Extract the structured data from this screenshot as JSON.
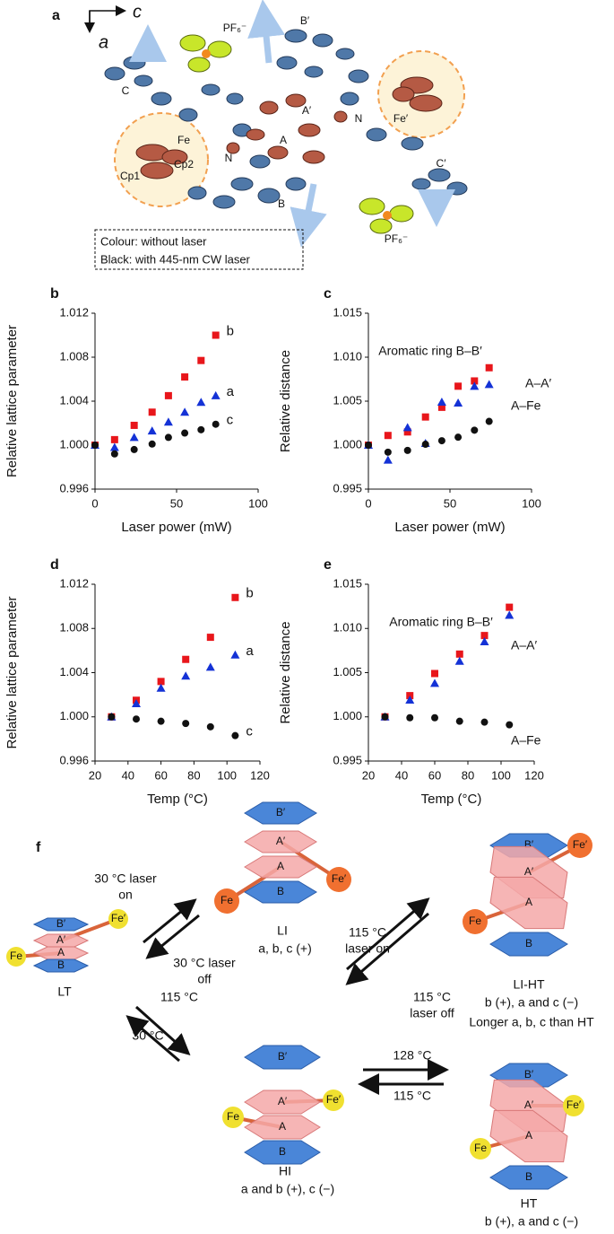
{
  "panel_a": {
    "panel": "a",
    "axes": [
      "c",
      "a"
    ],
    "atoms": [
      "PF₆⁻",
      "B′",
      "C",
      "A′",
      "N",
      "Fe′",
      "Fe",
      "N",
      "A",
      "Cp1",
      "Cp2",
      "B",
      "C′",
      "PF₆⁻"
    ],
    "legend": [
      "Colour: without laser",
      "Black: with 445-nm CW laser"
    ]
  },
  "chart_data": [
    {
      "type": "scatter",
      "panel": "b",
      "ylabel": "Relative lattice parameter",
      "xlabel": "Laser power (mW)",
      "x": [
        0,
        12,
        24,
        35,
        45,
        55,
        65,
        74
      ],
      "xlim": [
        0,
        100
      ],
      "xticks": [
        0,
        50,
        100
      ],
      "ylim": [
        0.996,
        1.012
      ],
      "yticks": [
        0.996,
        {
          "value": 1,
          "label": "1.000"
        },
        1.004,
        1.008,
        1.012
      ],
      "series": [
        {
          "name": "b",
          "color": "#e8161b",
          "marker": "square",
          "values": [
            1.0,
            1.0005,
            1.0018,
            1.003,
            1.0045,
            1.0062,
            1.0077,
            1.01
          ]
        },
        {
          "name": "a",
          "color": "#1432d6",
          "marker": "triangle",
          "values": [
            1.0,
            0.9998,
            1.0007,
            1.0013,
            1.0021,
            1.003,
            1.0039,
            1.0045
          ]
        },
        {
          "name": "c",
          "color": "#111111",
          "marker": "circle",
          "values": [
            1.0,
            0.9992,
            0.9996,
            1.0001,
            1.0007,
            1.0011,
            1.0014,
            1.0019
          ]
        }
      ]
    },
    {
      "type": "scatter",
      "panel": "c",
      "ylabel": "Relative distance",
      "xlabel": "Laser power (mW)",
      "x": [
        0,
        12,
        24,
        35,
        45,
        55,
        65,
        74
      ],
      "xlim": [
        0,
        100
      ],
      "xticks": [
        0,
        50,
        100
      ],
      "ylim": [
        0.995,
        1.015
      ],
      "yticks": [
        0.995,
        {
          "value": 1,
          "label": "1.000"
        },
        1.005,
        {
          "value": 1.01,
          "label": "1.010"
        },
        1.015
      ],
      "series": [
        {
          "name": "Aromatic ring B–B′",
          "color": "#e8161b",
          "marker": "square",
          "values": [
            1.0,
            1.0011,
            1.0015,
            1.0032,
            1.0043,
            1.0067,
            1.0073,
            1.0088
          ]
        },
        {
          "name": "A–A′",
          "color": "#1432d6",
          "marker": "triangle",
          "values": [
            1.0,
            0.9983,
            1.002,
            1.0002,
            1.0049,
            1.0048,
            1.0067,
            1.0069
          ]
        },
        {
          "name": "A–Fe",
          "color": "#111111",
          "marker": "circle",
          "values": [
            1.0,
            0.9992,
            0.9994,
            1.0001,
            1.0005,
            1.0009,
            1.0017,
            1.0027
          ]
        }
      ]
    },
    {
      "type": "scatter",
      "panel": "d",
      "ylabel": "Relative lattice parameter",
      "xlabel": "Temp (°C)",
      "x": [
        30,
        45,
        60,
        75,
        90,
        105
      ],
      "xlim": [
        20,
        120
      ],
      "xticks": [
        20,
        40,
        60,
        80,
        100,
        120
      ],
      "ylim": [
        0.996,
        1.012
      ],
      "yticks": [
        0.996,
        {
          "value": 1,
          "label": "1.000"
        },
        1.004,
        1.008,
        1.012
      ],
      "series": [
        {
          "name": "b",
          "color": "#e8161b",
          "marker": "square",
          "values": [
            1.0,
            1.0015,
            1.0032,
            1.0052,
            1.0072,
            1.0108
          ]
        },
        {
          "name": "a",
          "color": "#1432d6",
          "marker": "triangle",
          "values": [
            1.0,
            1.0012,
            1.0026,
            1.0037,
            1.0045,
            1.0056
          ]
        },
        {
          "name": "c",
          "color": "#111111",
          "marker": "circle",
          "values": [
            1.0,
            0.9998,
            0.9996,
            0.9994,
            0.9991,
            0.9983
          ]
        }
      ]
    },
    {
      "type": "scatter",
      "panel": "e",
      "ylabel": "Relative distance",
      "xlabel": "Temp (°C)",
      "x": [
        30,
        45,
        60,
        75,
        90,
        105
      ],
      "xlim": [
        20,
        120
      ],
      "xticks": [
        20,
        40,
        60,
        80,
        100,
        120
      ],
      "ylim": [
        0.995,
        1.015
      ],
      "yticks": [
        0.995,
        {
          "value": 1,
          "label": "1.000"
        },
        1.005,
        {
          "value": 1.01,
          "label": "1.010"
        },
        1.015
      ],
      "series": [
        {
          "name": "Aromatic ring B–B′",
          "color": "#e8161b",
          "marker": "square",
          "values": [
            1.0,
            1.0024,
            1.0049,
            1.0071,
            1.0092,
            1.0124
          ]
        },
        {
          "name": "A–A′",
          "color": "#1432d6",
          "marker": "triangle",
          "values": [
            1.0,
            1.0019,
            1.0038,
            1.0063,
            1.0085,
            1.0115
          ]
        },
        {
          "name": "A–Fe",
          "color": "#111111",
          "marker": "circle",
          "values": [
            1.0,
            0.9999,
            0.9999,
            0.9995,
            0.9994,
            0.9991
          ]
        }
      ]
    }
  ],
  "panel_f": {
    "panel": "f",
    "states": [
      {
        "name": "LT",
        "rings": [
          "B′",
          "A′",
          "A",
          "B"
        ],
        "fe": [
          "Fe",
          "Fe′"
        ],
        "notes": []
      },
      {
        "name": "LI",
        "rings": [
          "B′",
          "A′",
          "A",
          "B"
        ],
        "fe": [
          "Fe",
          "Fe′"
        ],
        "notes": [
          "a, b, c (+)"
        ]
      },
      {
        "name": "LI-HT",
        "rings": [
          "B′",
          "A′",
          "A",
          "B"
        ],
        "fe": [
          "Fe",
          "Fe′"
        ],
        "notes": [
          "b (+), a and c (−)",
          "Longer a, b, c than HT"
        ]
      },
      {
        "name": "HI",
        "rings": [
          "B′",
          "A′",
          "A",
          "B"
        ],
        "fe": [
          "Fe",
          "Fe′"
        ],
        "notes": [
          "a and b (+), c (−)"
        ]
      },
      {
        "name": "HT",
        "rings": [
          "B′",
          "A′",
          "A",
          "B"
        ],
        "fe": [
          "Fe",
          "Fe′"
        ],
        "notes": [
          "b (+), a and c (−)"
        ]
      }
    ],
    "transitions": [
      [
        "30 °C laser",
        "on"
      ],
      [
        "30 °C laser",
        "off"
      ],
      [
        "115 °C"
      ],
      [
        "30 °C"
      ],
      [
        "115 °C",
        "laser on"
      ],
      [
        "115 °C",
        "laser off"
      ],
      [
        "128 °C"
      ],
      [
        "115 °C"
      ]
    ]
  }
}
